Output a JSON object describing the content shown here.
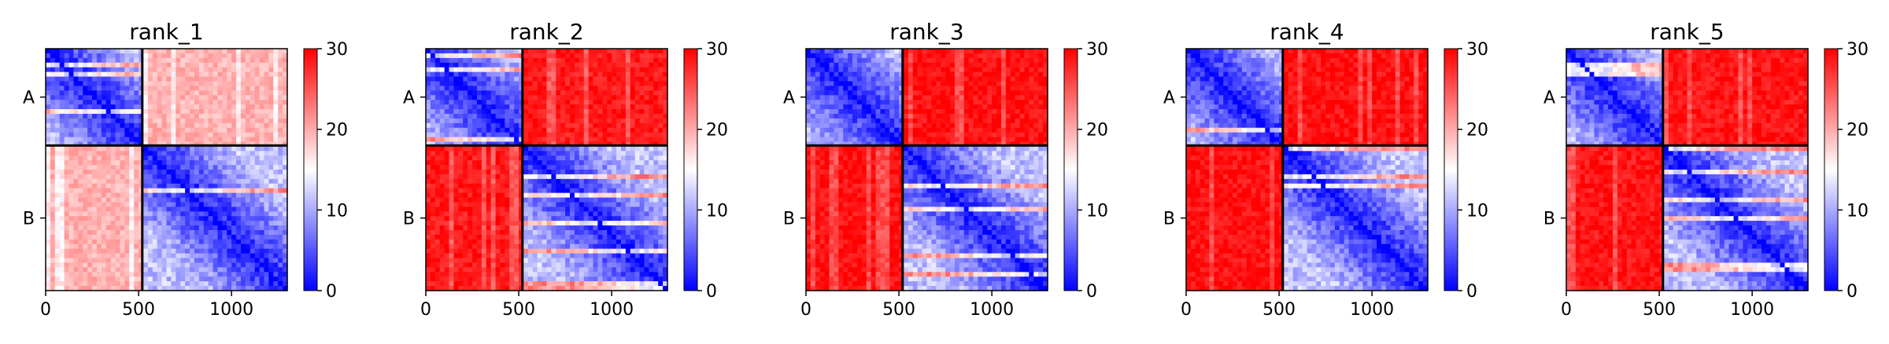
{
  "chart_data": [
    {
      "type": "heatmap",
      "title": "rank_1",
      "x_ticks": [
        0,
        500,
        1000
      ],
      "xlim": [
        0,
        1300
      ],
      "chain_labels": [
        "A",
        "B"
      ],
      "chain_boundary": 520,
      "colorbar": {
        "min": 0,
        "max": 30,
        "ticks": [
          0,
          10,
          20,
          30
        ],
        "colormap": "bwr"
      },
      "inter_chain_level": 0.65
    },
    {
      "type": "heatmap",
      "title": "rank_2",
      "x_ticks": [
        0,
        500,
        1000
      ],
      "xlim": [
        0,
        1300
      ],
      "chain_labels": [
        "A",
        "B"
      ],
      "chain_boundary": 520,
      "colorbar": {
        "min": 0,
        "max": 30,
        "ticks": [
          0,
          10,
          20,
          30
        ],
        "colormap": "bwr"
      },
      "inter_chain_level": 0.95
    },
    {
      "type": "heatmap",
      "title": "rank_3",
      "x_ticks": [
        0,
        500,
        1000
      ],
      "xlim": [
        0,
        1300
      ],
      "chain_labels": [
        "A",
        "B"
      ],
      "chain_boundary": 520,
      "colorbar": {
        "min": 0,
        "max": 30,
        "ticks": [
          0,
          10,
          20,
          30
        ],
        "colormap": "bwr"
      },
      "inter_chain_level": 0.97
    },
    {
      "type": "heatmap",
      "title": "rank_4",
      "x_ticks": [
        0,
        500,
        1000
      ],
      "xlim": [
        0,
        1300
      ],
      "chain_labels": [
        "A",
        "B"
      ],
      "chain_boundary": 520,
      "colorbar": {
        "min": 0,
        "max": 30,
        "ticks": [
          0,
          10,
          20,
          30
        ],
        "colormap": "bwr"
      },
      "inter_chain_level": 0.97
    },
    {
      "type": "heatmap",
      "title": "rank_5",
      "x_ticks": [
        0,
        500,
        1000
      ],
      "xlim": [
        0,
        1300
      ],
      "chain_labels": [
        "A",
        "B"
      ],
      "chain_boundary": 520,
      "colorbar": {
        "min": 0,
        "max": 30,
        "ticks": [
          0,
          10,
          20,
          30
        ],
        "colormap": "bwr"
      },
      "inter_chain_level": 0.96
    }
  ]
}
